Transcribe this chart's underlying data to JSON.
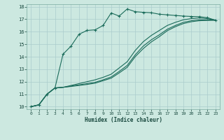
{
  "bg_color": "#cce8e0",
  "grid_color": "#aacccc",
  "line_color": "#1a6b5a",
  "xlabel": "Humidex (Indice chaleur)",
  "xlim": [
    -0.5,
    23.5
  ],
  "ylim": [
    9.8,
    18.2
  ],
  "xticks": [
    0,
    1,
    2,
    3,
    4,
    5,
    6,
    7,
    8,
    9,
    10,
    11,
    12,
    13,
    14,
    15,
    16,
    17,
    18,
    19,
    20,
    21,
    22,
    23
  ],
  "yticks": [
    10,
    11,
    12,
    13,
    14,
    15,
    16,
    17,
    18
  ],
  "curves": [
    {
      "x": [
        0,
        1,
        2,
        3,
        4,
        5,
        6,
        7,
        8,
        9,
        10,
        11,
        12,
        13,
        14,
        15,
        16,
        17,
        18,
        19,
        20,
        21,
        22,
        23
      ],
      "y": [
        10,
        10.15,
        11.0,
        11.5,
        14.2,
        14.85,
        15.8,
        16.1,
        16.15,
        16.5,
        17.5,
        17.25,
        17.82,
        17.6,
        17.55,
        17.52,
        17.4,
        17.35,
        17.3,
        17.25,
        17.22,
        17.2,
        17.12,
        16.92
      ],
      "marker": "+"
    },
    {
      "x": [
        0,
        1,
        2,
        3,
        4,
        5,
        6,
        7,
        8,
        9,
        10,
        11,
        12,
        13,
        14,
        15,
        16,
        17,
        18,
        19,
        20,
        21,
        22,
        23
      ],
      "y": [
        10,
        10.15,
        11.0,
        11.5,
        11.55,
        11.7,
        11.85,
        12.0,
        12.15,
        12.35,
        12.6,
        13.1,
        13.6,
        14.5,
        15.2,
        15.7,
        16.1,
        16.5,
        16.75,
        16.95,
        17.05,
        17.1,
        17.05,
        16.92
      ],
      "marker": null
    },
    {
      "x": [
        0,
        1,
        2,
        3,
        4,
        5,
        6,
        7,
        8,
        9,
        10,
        11,
        12,
        13,
        14,
        15,
        16,
        17,
        18,
        19,
        20,
        21,
        22,
        23
      ],
      "y": [
        10,
        10.15,
        11.0,
        11.5,
        11.55,
        11.65,
        11.75,
        11.85,
        11.95,
        12.15,
        12.38,
        12.82,
        13.3,
        14.15,
        14.85,
        15.35,
        15.75,
        16.2,
        16.5,
        16.75,
        16.88,
        16.95,
        16.95,
        16.92
      ],
      "marker": null
    },
    {
      "x": [
        0,
        1,
        2,
        3,
        4,
        5,
        6,
        7,
        8,
        9,
        10,
        11,
        12,
        13,
        14,
        15,
        16,
        17,
        18,
        19,
        20,
        21,
        22,
        23
      ],
      "y": [
        10,
        10.15,
        11.0,
        11.5,
        11.55,
        11.62,
        11.7,
        11.78,
        11.88,
        12.08,
        12.28,
        12.7,
        13.15,
        14.0,
        14.65,
        15.18,
        15.6,
        16.08,
        16.4,
        16.65,
        16.8,
        16.88,
        16.9,
        16.92
      ],
      "marker": null
    }
  ]
}
